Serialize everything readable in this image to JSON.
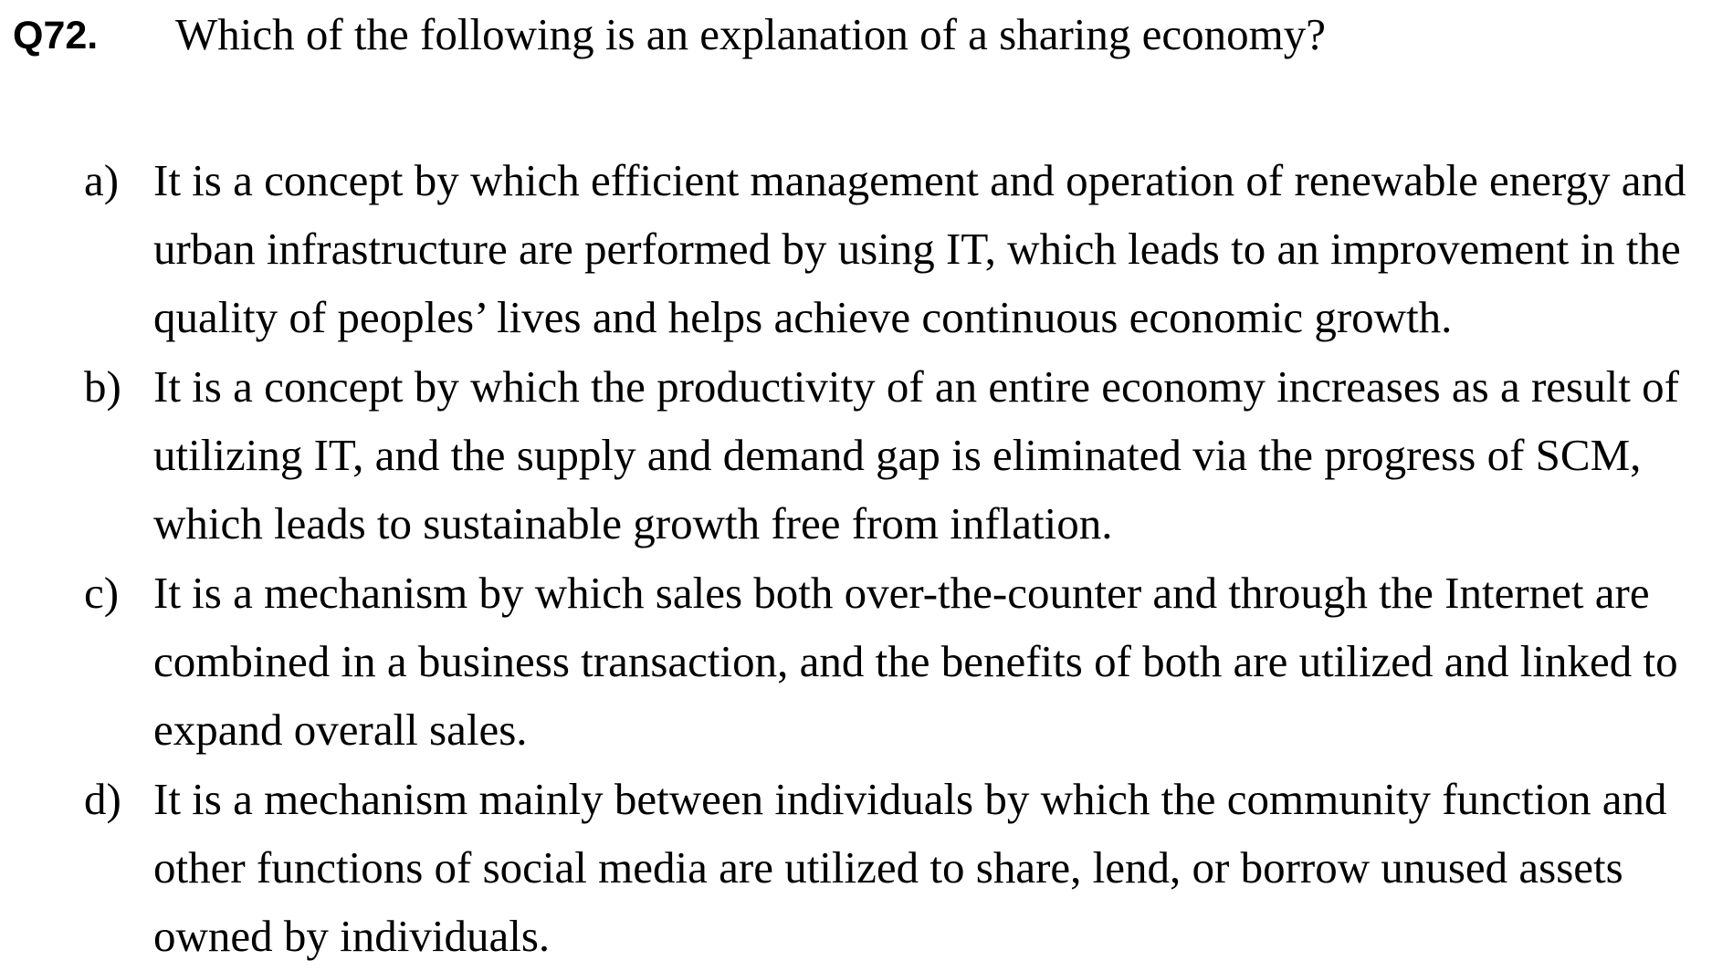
{
  "question": {
    "number": "Q72.",
    "text": "Which of the following is an explanation of a sharing economy?"
  },
  "options": [
    {
      "letter": "a)",
      "lines": [
        "It is a concept by which efficient management and operation of renewable energy and",
        "urban infrastructure are performed by using IT, which leads to an improvement in the",
        "quality of peoples’ lives and helps achieve continuous economic growth."
      ]
    },
    {
      "letter": "b)",
      "lines": [
        "It is a concept by which the productivity of an entire economy increases as a result of",
        "utilizing IT, and the supply and demand gap is eliminated via the progress of SCM,",
        "which leads to sustainable growth free from inflation."
      ]
    },
    {
      "letter": "c)",
      "lines": [
        "It is a mechanism by which sales both over-the-counter and through the Internet are",
        "combined in a business transaction, and the benefits of both are utilized and linked to",
        "expand overall sales."
      ]
    },
    {
      "letter": "d)",
      "lines": [
        "It is a mechanism mainly between individuals by which the community function and",
        "other functions of social media are utilized to share, lend, or borrow unused assets",
        "owned by individuals."
      ]
    }
  ]
}
